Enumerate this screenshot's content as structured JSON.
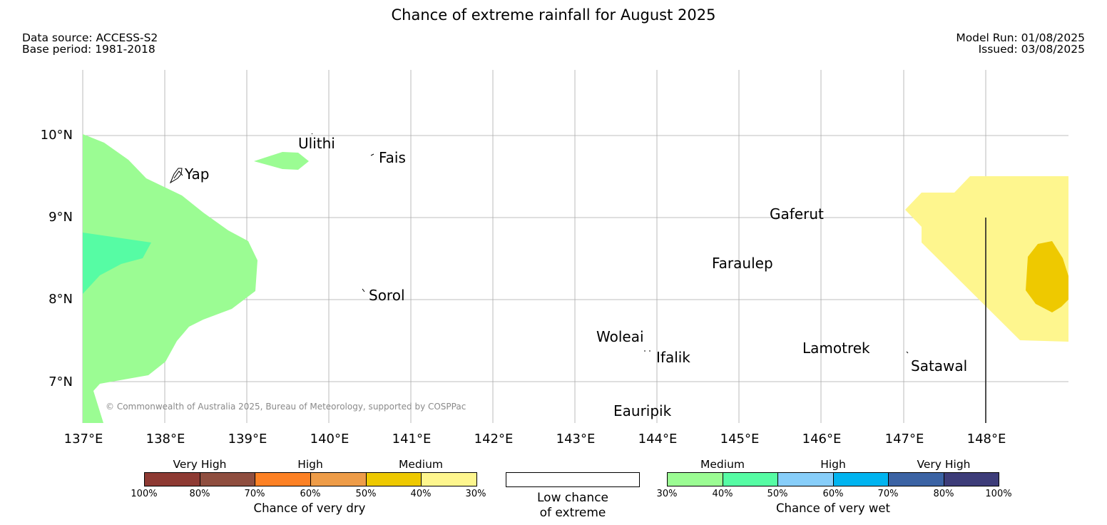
{
  "header": {
    "title": "Chance of extreme rainfall for August 2025",
    "data_source": "Data source: ACCESS-S2",
    "base_period": "Base period: 1981-2018",
    "model_run": "Model Run: 01/08/2025",
    "issued": "Issued: 03/08/2025"
  },
  "map": {
    "copyright": "© Commonwealth of Australia 2025, Bureau of Meteorology, supported by COSPPac",
    "lon_ticks": [
      "137°E",
      "138°E",
      "139°E",
      "140°E",
      "141°E",
      "142°E",
      "143°E",
      "144°E",
      "145°E",
      "146°E",
      "147°E",
      "148°E"
    ],
    "lat_ticks": [
      "10°N",
      "9°N",
      "8°N",
      "7°N"
    ],
    "extent": {
      "lon": [
        137,
        149
      ],
      "lat": [
        6.5,
        10.8
      ]
    },
    "islands": [
      {
        "name": "Ulithi",
        "lon": 139.7,
        "lat": 10.0
      },
      {
        "name": "Fais",
        "lon": 140.5,
        "lat": 9.75
      },
      {
        "name": "Yap",
        "lon": 138.1,
        "lat": 9.5
      },
      {
        "name": "Gaferut",
        "lon": 145.4,
        "lat": 9.0
      },
      {
        "name": "Faraulep",
        "lon": 144.7,
        "lat": 8.4
      },
      {
        "name": "Sorol",
        "lon": 140.45,
        "lat": 8.1
      },
      {
        "name": "Woleai",
        "lon": 143.9,
        "lat": 7.5
      },
      {
        "name": "Ifalik",
        "lon": 143.8,
        "lat": 7.3
      },
      {
        "name": "Lamotrek",
        "lon": 145.8,
        "lat": 7.4
      },
      {
        "name": "Satawal",
        "lon": 147.05,
        "lat": 7.2
      },
      {
        "name": "Eauripik",
        "lon": 143.5,
        "lat": 6.6
      }
    ],
    "regions": [
      {
        "category": "wet-medium-30-40",
        "color": "#9bfc93"
      },
      {
        "category": "wet-medium-40-50",
        "color": "#56fca4"
      },
      {
        "category": "dry-medium-30-40",
        "color": "#fef68e"
      },
      {
        "category": "dry-medium-40-50",
        "color": "#eec900"
      }
    ]
  },
  "legend": {
    "dry": {
      "categories": [
        "Very High",
        "High",
        "Medium"
      ],
      "colors": [
        "#8e3a33",
        "#8f4e3f",
        "#fd8124",
        "#ee9c48",
        "#eec900",
        "#fef68e"
      ],
      "ticks": [
        "100%",
        "80%",
        "70%",
        "60%",
        "50%",
        "40%",
        "30%"
      ],
      "caption": "Chance of very dry"
    },
    "low": {
      "line1": "Low chance",
      "line2": "of extreme"
    },
    "wet": {
      "categories": [
        "Medium",
        "High",
        "Very High"
      ],
      "colors": [
        "#9bfc93",
        "#56fca4",
        "#87cefa",
        "#00b4f0",
        "#3b63a4",
        "#3d3c79"
      ],
      "ticks": [
        "30%",
        "40%",
        "50%",
        "60%",
        "70%",
        "80%",
        "100%"
      ],
      "caption": "Chance of very wet"
    }
  }
}
